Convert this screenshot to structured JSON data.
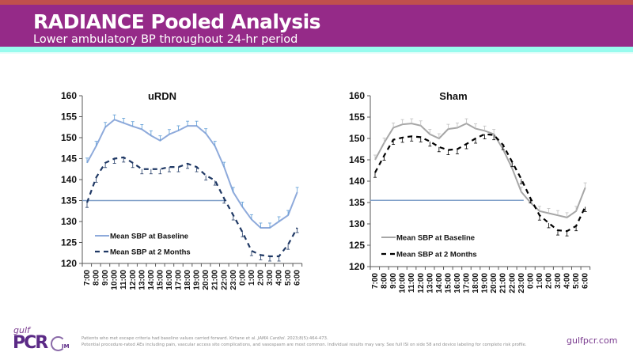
{
  "header": {
    "title": "RADIANCE Pooled Analysis",
    "subtitle": "Lower ambulatory BP throughout 24-hr period"
  },
  "colors": {
    "top_strip": "#c0504d",
    "header_bg": "#952a88",
    "accent_strip": "#98fbee",
    "urdn_baseline": "#8eaadb",
    "urdn_two_months": "#1f3864",
    "sham_baseline": "#a6a6a6",
    "sham_two_months": "#000000",
    "reference_line": "#7f9fc8"
  },
  "chart_data": [
    {
      "type": "line",
      "title": "uRDN",
      "xlabel": "",
      "ylabel": "",
      "ylim": [
        120,
        160
      ],
      "yticks": [
        120,
        125,
        130,
        135,
        140,
        145,
        150,
        155,
        160
      ],
      "grid": false,
      "legend_position": "bottom-left",
      "categories": [
        "7:00",
        "8:00",
        "9:00",
        "10:00",
        "11:00",
        "12:00",
        "13:00",
        "14:00",
        "15:00",
        "16:00",
        "17:00",
        "18:00",
        "19:00",
        "20:00",
        "21:00",
        "22:00",
        "23:00",
        "0:00",
        "1:00",
        "2:00",
        "3:00",
        "4:00",
        "5:00",
        "6:00"
      ],
      "series": [
        {
          "name": "Mean SBP at Baseline",
          "style": "solid",
          "values": [
            144,
            148,
            152.5,
            154.3,
            153.5,
            152.7,
            152,
            150.5,
            149.3,
            150.8,
            151.7,
            152.8,
            152.8,
            151,
            148,
            143,
            137,
            133.5,
            130.5,
            128.5,
            128.5,
            130,
            131.5,
            137
          ]
        },
        {
          "name": "Mean SBP at 2 Months",
          "style": "dashed",
          "values": [
            134.5,
            140.5,
            144,
            145,
            145.3,
            144,
            142.5,
            142.5,
            142.5,
            143,
            143,
            143.8,
            143,
            141,
            139.8,
            135.5,
            131.5,
            127.5,
            123,
            122,
            121.7,
            121.7,
            124.5,
            128.5
          ]
        }
      ],
      "reference_line": {
        "y": 135,
        "from": "7:00",
        "to": "22:00"
      }
    },
    {
      "type": "line",
      "title": "Sham",
      "xlabel": "",
      "ylabel": "",
      "ylim": [
        120,
        160
      ],
      "yticks": [
        120,
        125,
        130,
        135,
        140,
        145,
        150,
        155,
        160
      ],
      "grid": false,
      "legend_position": "bottom-left",
      "categories": [
        "7:00",
        "8:00",
        "9:00",
        "10:00",
        "11:00",
        "12:00",
        "13:00",
        "14:00",
        "15:00",
        "16:00",
        "17:00",
        "18:00",
        "19:00",
        "20:00",
        "21:00",
        "22:00",
        "23:00",
        "0:00",
        "1:00",
        "2:00",
        "3:00",
        "4:00",
        "5:00",
        "6:00"
      ],
      "series": [
        {
          "name": "Mean SBP at Baseline",
          "style": "solid",
          "values": [
            145,
            149,
            152.5,
            153.3,
            153.5,
            153,
            151,
            150,
            152.2,
            152.5,
            153.5,
            152.3,
            151.8,
            151,
            147.5,
            143,
            137.5,
            135,
            133,
            132.5,
            132,
            131.5,
            133,
            138.5
          ]
        },
        {
          "name": "Mean SBP at 2 Months",
          "style": "dashed",
          "values": [
            142,
            146,
            149.7,
            150.2,
            150.5,
            150.3,
            149.3,
            148,
            147.3,
            147.5,
            148.7,
            150,
            151,
            150.8,
            148.5,
            144.5,
            140.5,
            136,
            132,
            130.2,
            128.5,
            128.3,
            129.5,
            134
          ]
        }
      ],
      "reference_line": {
        "y": 135.5,
        "from": "7:00",
        "to": "23:00"
      }
    }
  ],
  "footer": {
    "logo_gulf": "gulf",
    "logo_pcr": "PCR",
    "logo_im": "IM",
    "note_line1_a": "Patients who met escape criteria had baseline values carried forward.  Kirtane et al. ",
    "note_line1_journal": "JAMA Cardiol.",
    "note_line1_b": " 2023;8(5):464-473.",
    "note_line2": "Potential procedure-rated AEs including pain, vascular access site complications, and vasospasm are most common. Individual results may vary. See full ISI on side 58 and device labeling for complete risk profile.",
    "website": "gulfpcr.com"
  }
}
